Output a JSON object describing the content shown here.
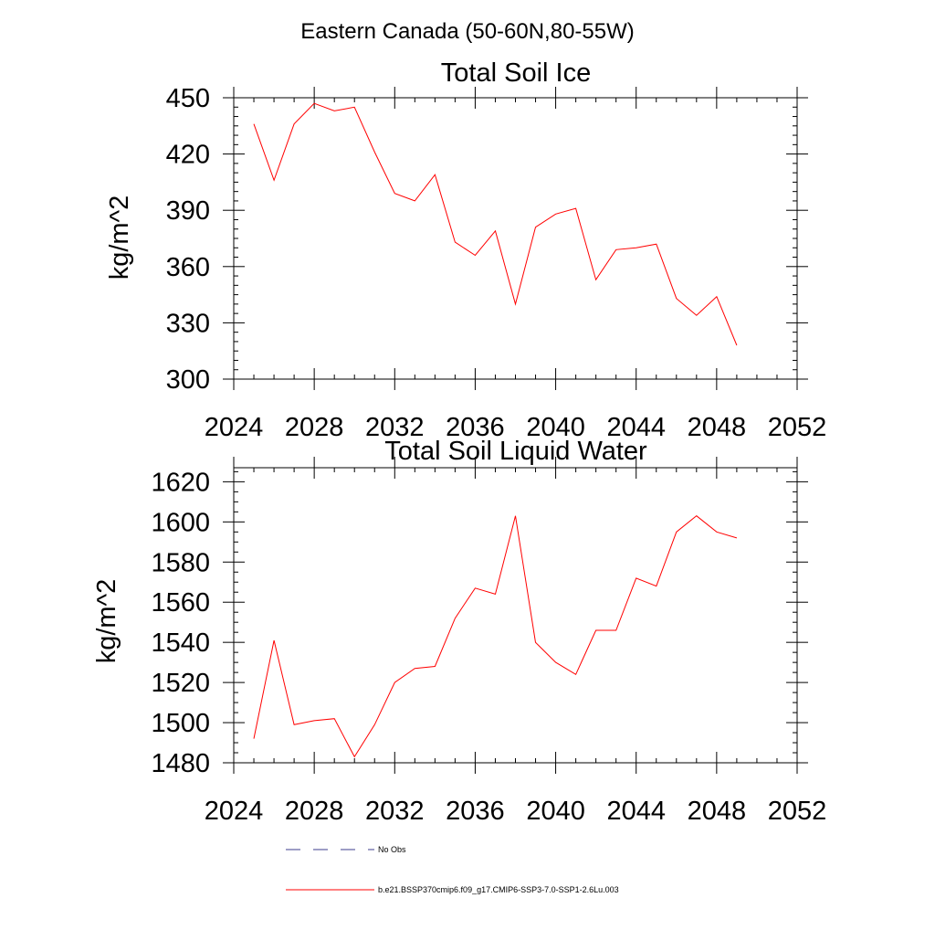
{
  "figure_title": "Eastern Canada (50-60N,80-55W)",
  "legend": [
    {
      "label": "No Obs",
      "color": "#3c3c8c",
      "style": "dashed"
    },
    {
      "label": "b.e21.BSSP370cmip6.f09_g17.CMIP6-SSP3-7.0-SSP1-2.6Lu.003",
      "color": "#ff0000",
      "style": "solid"
    }
  ],
  "chart_data": [
    {
      "type": "line",
      "title": "Total Soil Ice",
      "xlabel": "",
      "ylabel": "kg/m^2",
      "xlim": [
        2024,
        2052
      ],
      "ylim": [
        300,
        450
      ],
      "xticks": [
        2024,
        2028,
        2032,
        2036,
        2040,
        2044,
        2048,
        2052
      ],
      "yticks": [
        300,
        330,
        360,
        390,
        420,
        450
      ],
      "x_minor_step": 1,
      "y_minor_step": 5,
      "grid": false,
      "series": [
        {
          "color": "#ff0000",
          "x": [
            2025,
            2026,
            2027,
            2028,
            2029,
            2030,
            2031,
            2032,
            2033,
            2034,
            2035,
            2036,
            2037,
            2038,
            2039,
            2040,
            2041,
            2042,
            2043,
            2044,
            2045,
            2046,
            2047,
            2048,
            2049
          ],
          "values": [
            436,
            406,
            436,
            447,
            443,
            445,
            421,
            399,
            395,
            409,
            373,
            366,
            379,
            340,
            381,
            388,
            391,
            353,
            369,
            370,
            372,
            343,
            334,
            344,
            318
          ]
        }
      ]
    },
    {
      "type": "line",
      "title": "Total Soil Liquid Water",
      "xlabel": "",
      "ylabel": "kg/m^2",
      "xlim": [
        2024,
        2052
      ],
      "ylim": [
        1480,
        1627
      ],
      "xticks": [
        2024,
        2028,
        2032,
        2036,
        2040,
        2044,
        2048,
        2052
      ],
      "yticks": [
        1480,
        1500,
        1520,
        1540,
        1560,
        1580,
        1600,
        1620
      ],
      "x_minor_step": 1,
      "y_minor_step": 5,
      "grid": false,
      "series": [
        {
          "color": "#ff0000",
          "x": [
            2025,
            2026,
            2027,
            2028,
            2029,
            2030,
            2031,
            2032,
            2033,
            2034,
            2035,
            2036,
            2037,
            2038,
            2039,
            2040,
            2041,
            2042,
            2043,
            2044,
            2045,
            2046,
            2047,
            2048,
            2049
          ],
          "values": [
            1492,
            1541,
            1499,
            1501,
            1502,
            1483,
            1499,
            1520,
            1527,
            1528,
            1552,
            1567,
            1564,
            1603,
            1540,
            1530,
            1524,
            1546,
            1546,
            1572,
            1568,
            1595,
            1603,
            1595,
            1592
          ]
        }
      ]
    }
  ]
}
